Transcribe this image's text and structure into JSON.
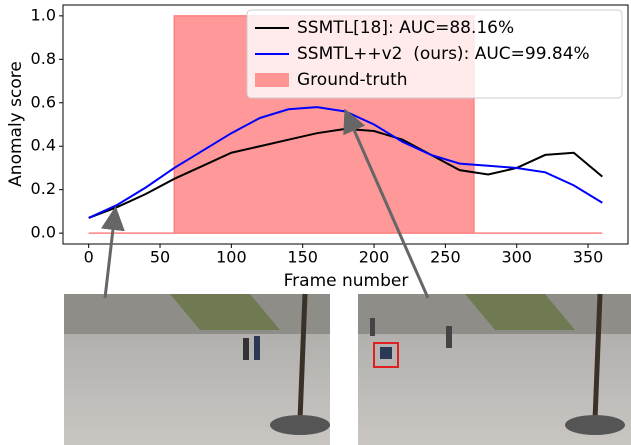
{
  "chart_data": {
    "type": "line",
    "x_label": "Frame number",
    "y_label": "Anomaly score",
    "xlim": [
      -18,
      378
    ],
    "ylim": [
      -0.05,
      1.05
    ],
    "xticks": [
      0,
      50,
      100,
      150,
      200,
      250,
      300,
      350
    ],
    "yticks": [
      {
        "value": 0,
        "label": "0.0"
      },
      {
        "value": 0.2,
        "label": "0.2"
      },
      {
        "value": 0.4,
        "label": "0.4"
      },
      {
        "value": 0.6,
        "label": "0.6"
      },
      {
        "value": 0.8,
        "label": "0.8"
      },
      {
        "value": 1,
        "label": "1.0"
      }
    ],
    "series": [
      {
        "name": "SSMTL[18]: AUC=88.16%",
        "color": "#000000",
        "x": [
          0,
          20,
          40,
          60,
          80,
          100,
          120,
          140,
          160,
          180,
          200,
          220,
          240,
          260,
          280,
          300,
          320,
          340,
          360
        ],
        "values": [
          0.07,
          0.12,
          0.18,
          0.25,
          0.31,
          0.37,
          0.4,
          0.43,
          0.46,
          0.48,
          0.47,
          0.43,
          0.36,
          0.29,
          0.27,
          0.3,
          0.36,
          0.37,
          0.26
        ]
      },
      {
        "name": "SSMTL++v2  (ours): AUC=99.84%",
        "color": "#0000ff",
        "x": [
          0,
          20,
          40,
          60,
          80,
          100,
          120,
          140,
          160,
          180,
          200,
          220,
          240,
          260,
          280,
          300,
          320,
          340,
          360
        ],
        "values": [
          0.07,
          0.13,
          0.21,
          0.3,
          0.38,
          0.46,
          0.53,
          0.57,
          0.58,
          0.56,
          0.5,
          0.42,
          0.36,
          0.32,
          0.31,
          0.3,
          0.28,
          0.22,
          0.14
        ]
      },
      {
        "name": "Ground-truth",
        "color": "#ff8080",
        "fill": true,
        "x": [
          0,
          60,
          60,
          270,
          270,
          360
        ],
        "values": [
          0,
          0,
          1,
          1,
          0,
          0
        ]
      }
    ],
    "legend": "upper right"
  }
}
